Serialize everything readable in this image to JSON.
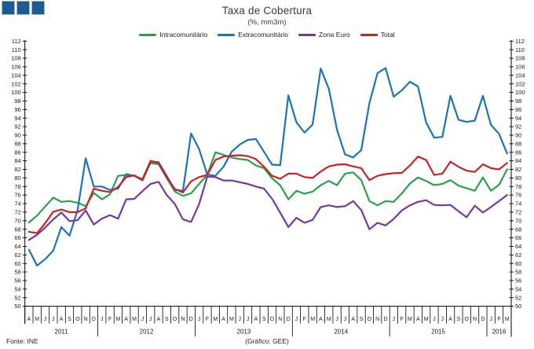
{
  "header": {
    "title": "Taxa de Cobertura",
    "subtitle": "(%, mm3m)"
  },
  "footer": {
    "source": "Fonte: INE",
    "credit": "(Gráfico: GEE)"
  },
  "chart_data": {
    "type": "line",
    "title": "Taxa de Cobertura",
    "subtitle": "(%, mm3m)",
    "ylabel": "",
    "xlabel": "",
    "y_axis": {
      "min": 50,
      "max": 112,
      "step": 2,
      "sides": "both"
    },
    "grid": false,
    "legend_position": "top",
    "x_months": [
      "A",
      "M",
      "J",
      "J",
      "A",
      "S",
      "O",
      "N",
      "D",
      "J",
      "F",
      "M",
      "A",
      "M",
      "J",
      "J",
      "A",
      "S",
      "O",
      "N",
      "D",
      "J",
      "F",
      "M",
      "A",
      "M",
      "J",
      "J",
      "A",
      "S",
      "O",
      "N",
      "D",
      "J",
      "F",
      "M",
      "A",
      "M",
      "J",
      "J",
      "A",
      "S",
      "O",
      "N",
      "D",
      "J",
      "F",
      "M",
      "A",
      "M",
      "J",
      "J",
      "A",
      "S",
      "O",
      "N",
      "D",
      "J",
      "F",
      "M"
    ],
    "years": [
      {
        "label": "2011",
        "months": 9
      },
      {
        "label": "2012",
        "months": 12
      },
      {
        "label": "2013",
        "months": 12
      },
      {
        "label": "2014",
        "months": 12
      },
      {
        "label": "2015",
        "months": 12
      },
      {
        "label": "2016",
        "months": 3
      }
    ],
    "series": [
      {
        "name": "Intracomunitário",
        "color": "#2ca04c",
        "values": [
          69.6,
          71.2,
          73.3,
          75.4,
          74.4,
          74.6,
          74.2,
          73.4,
          76.5,
          75.0,
          76.2,
          80.5,
          80.7,
          80.5,
          79.4,
          83.5,
          83.2,
          80.0,
          76.8,
          75.8,
          76.4,
          78.6,
          80.7,
          86.0,
          85.4,
          84.8,
          84.4,
          84.2,
          82.9,
          82.3,
          79.9,
          78.3,
          75.0,
          77.0,
          76.3,
          76.8,
          78.3,
          79.3,
          78.3,
          81.0,
          81.3,
          79.5,
          74.6,
          73.6,
          74.6,
          74.4,
          76.4,
          78.7,
          80.1,
          79.3,
          78.3,
          78.6,
          79.5,
          78.2,
          77.6,
          77.0,
          80.1,
          77.0,
          78.4,
          82.0
        ]
      },
      {
        "name": "Extracomunitário",
        "color": "#1b74bb",
        "values": [
          63.2,
          59.5,
          61.0,
          63.0,
          68.5,
          66.5,
          72.5,
          84.6,
          78.0,
          78.0,
          77.2,
          77.5,
          80.9,
          80.5,
          79.7,
          83.9,
          83.7,
          80.5,
          77.2,
          77.0,
          90.4,
          86.7,
          80.8,
          80.5,
          82.6,
          86.1,
          87.8,
          88.9,
          89.1,
          86.1,
          83.1,
          83.0,
          99.3,
          93.0,
          90.6,
          92.5,
          105.6,
          100.8,
          91.3,
          85.5,
          84.8,
          86.5,
          97.5,
          104.5,
          105.7,
          99.0,
          100.5,
          102.5,
          101.4,
          93.0,
          89.4,
          89.6,
          99.2,
          93.6,
          93.1,
          93.4,
          99.2,
          92.4,
          90.3,
          85.7
        ]
      },
      {
        "name": "Zona Euro",
        "color": "#7438a5",
        "values": [
          65.5,
          66.7,
          68.4,
          70.3,
          71.9,
          69.9,
          70.1,
          72.4,
          69.1,
          70.5,
          71.3,
          70.5,
          75.0,
          75.1,
          76.9,
          78.6,
          79.1,
          76.0,
          73.9,
          70.3,
          69.7,
          73.9,
          80.3,
          80.2,
          79.4,
          79.4,
          79.0,
          78.6,
          78.0,
          77.5,
          75.1,
          71.9,
          68.5,
          70.7,
          69.5,
          70.2,
          73.2,
          73.6,
          73.2,
          73.4,
          74.6,
          72.5,
          68.0,
          69.5,
          68.9,
          70.4,
          72.4,
          73.6,
          74.4,
          74.8,
          73.7,
          73.6,
          73.7,
          72.2,
          70.8,
          73.5,
          71.9,
          73.2,
          74.6,
          76.0
        ]
      },
      {
        "name": "Total",
        "color": "#cc2127",
        "values": [
          67.4,
          67.1,
          69.4,
          72.1,
          72.6,
          72.0,
          72.0,
          72.9,
          77.5,
          77.0,
          76.7,
          77.9,
          80.2,
          80.6,
          79.5,
          84.0,
          83.5,
          80.1,
          77.4,
          76.6,
          79.2,
          80.2,
          80.7,
          84.2,
          85.0,
          85.2,
          85.3,
          85.1,
          84.4,
          82.6,
          80.5,
          79.8,
          81.0,
          81.0,
          80.2,
          80.0,
          81.5,
          82.7,
          83.1,
          83.2,
          82.7,
          82.3,
          79.5,
          80.5,
          80.9,
          81.1,
          81.2,
          82.9,
          85.0,
          84.2,
          80.7,
          81.0,
          83.8,
          82.6,
          81.7,
          81.4,
          83.2,
          82.3,
          82.0,
          83.5
        ]
      }
    ]
  }
}
